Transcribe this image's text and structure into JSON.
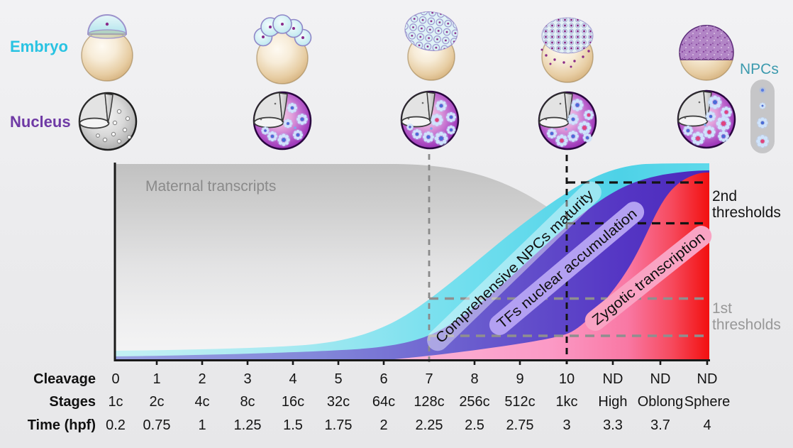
{
  "figure": {
    "row_labels": {
      "embryo": "Embryo",
      "nucleus": "Nucleus",
      "npcs": "NPCs"
    },
    "colors": {
      "embryo_label": "#29c3e2",
      "nucleus_label": "#6f3aa5",
      "npcs_label": "#3c9aae",
      "maternal_area_top": "#c1c1c1",
      "npc_maturity_area": "#4ed2e7",
      "tf_accumulation_area": "#5536c4",
      "zygotic_area_red": "#f2100f",
      "zygotic_area_pink": "#fbb5d8",
      "threshold_2nd": "#141414",
      "threshold_1st": "#909090"
    },
    "icons": {
      "embryo_row": [
        "embryo-1-cell-icon",
        "embryo-early-cleavage-icon",
        "embryo-128-cell-icon",
        "embryo-512-cell-icon",
        "embryo-sphere-icon"
      ],
      "nucleus_row": [
        "nucleus-immature-gray-icon",
        "nucleus-early-npc-icon",
        "nucleus-mid-npc-icon",
        "nucleus-late-npc-icon",
        "nucleus-mature-npc-icon"
      ],
      "npc_ladder": [
        "npc-dot-icon",
        "npc-small-flower-icon",
        "npc-flower-icon",
        "npc-mature-flower-icon"
      ]
    }
  },
  "chart": {
    "maternal_label": "Maternal transcripts",
    "curve_labels": {
      "npc": "Comprehensive NPCs maturity",
      "tf": "TFs nuclear accumulation",
      "zygotic": "Zygotic transcription"
    },
    "thresholds": {
      "second": {
        "line1": "2nd",
        "line2": "thresholds"
      },
      "first": {
        "line1": "1st",
        "line2": "thresholds"
      }
    }
  },
  "chart_data": {
    "type": "area",
    "x_stages": [
      "1c",
      "2c",
      "4c",
      "8c",
      "16c",
      "32c",
      "64c",
      "128c",
      "256c",
      "512c",
      "1kc",
      "High",
      "Oblong",
      "Sphere"
    ],
    "x_time_hpf": [
      0.2,
      0.75,
      1,
      1.25,
      1.5,
      1.75,
      2,
      2.25,
      2.5,
      2.75,
      3,
      3.3,
      3.7,
      4
    ],
    "series": [
      {
        "name": "Maternal transcripts",
        "values": [
          1,
          1,
          1,
          1,
          1,
          1,
          1,
          0.99,
          0.94,
          0.87,
          0.7,
          0.46,
          0.17,
          0.01
        ]
      },
      {
        "name": "Comprehensive NPCs maturity",
        "values": [
          0.05,
          0.05,
          0.05,
          0.06,
          0.07,
          0.11,
          0.18,
          0.32,
          0.52,
          0.75,
          0.85,
          0.97,
          1.0,
          1.0
        ]
      },
      {
        "name": "TFs nuclear accumulation",
        "values": [
          0.02,
          0.02,
          0.03,
          0.03,
          0.04,
          0.05,
          0.07,
          0.13,
          0.25,
          0.44,
          0.7,
          0.86,
          0.94,
          0.97
        ]
      },
      {
        "name": "Zygotic transcription",
        "values": [
          0,
          0,
          0,
          0,
          0,
          0,
          0.005,
          0.02,
          0.05,
          0.08,
          0.12,
          0.34,
          0.77,
          0.95
        ]
      }
    ],
    "annotations": {
      "vertical_markers": [
        {
          "stage": "128c",
          "cleavage": 7,
          "time_hpf": 2.25,
          "style": "gray-dashed"
        },
        {
          "stage": "1kc",
          "cleavage": 10,
          "time_hpf": 3,
          "style": "black-dashed"
        }
      ],
      "horizontal_markers": [
        {
          "label": "2nd thresholds",
          "levels": [
            0.91,
            0.7
          ],
          "style": "black-dashed"
        },
        {
          "label": "1st thresholds",
          "levels": [
            0.32,
            0.12
          ],
          "style": "gray-dashed"
        }
      ]
    },
    "ylim": [
      0,
      1
    ],
    "grid": false,
    "legend_position": "labels-on-areas"
  },
  "table": {
    "rows": [
      {
        "header": "Cleavage",
        "values": [
          "0",
          "1",
          "2",
          "3",
          "4",
          "5",
          "6",
          "7",
          "8",
          "9",
          "10",
          "ND",
          "ND",
          "ND"
        ]
      },
      {
        "header": "Stages",
        "values": [
          "1c",
          "2c",
          "4c",
          "8c",
          "16c",
          "32c",
          "64c",
          "128c",
          "256c",
          "512c",
          "1kc",
          "High",
          "Oblong",
          "Sphere"
        ]
      },
      {
        "header": "Time (hpf)",
        "values": [
          "0.2",
          "0.75",
          "1",
          "1.25",
          "1.5",
          "1.75",
          "2",
          "2.25",
          "2.5",
          "2.75",
          "3",
          "3.3",
          "3.7",
          "4"
        ]
      }
    ]
  }
}
